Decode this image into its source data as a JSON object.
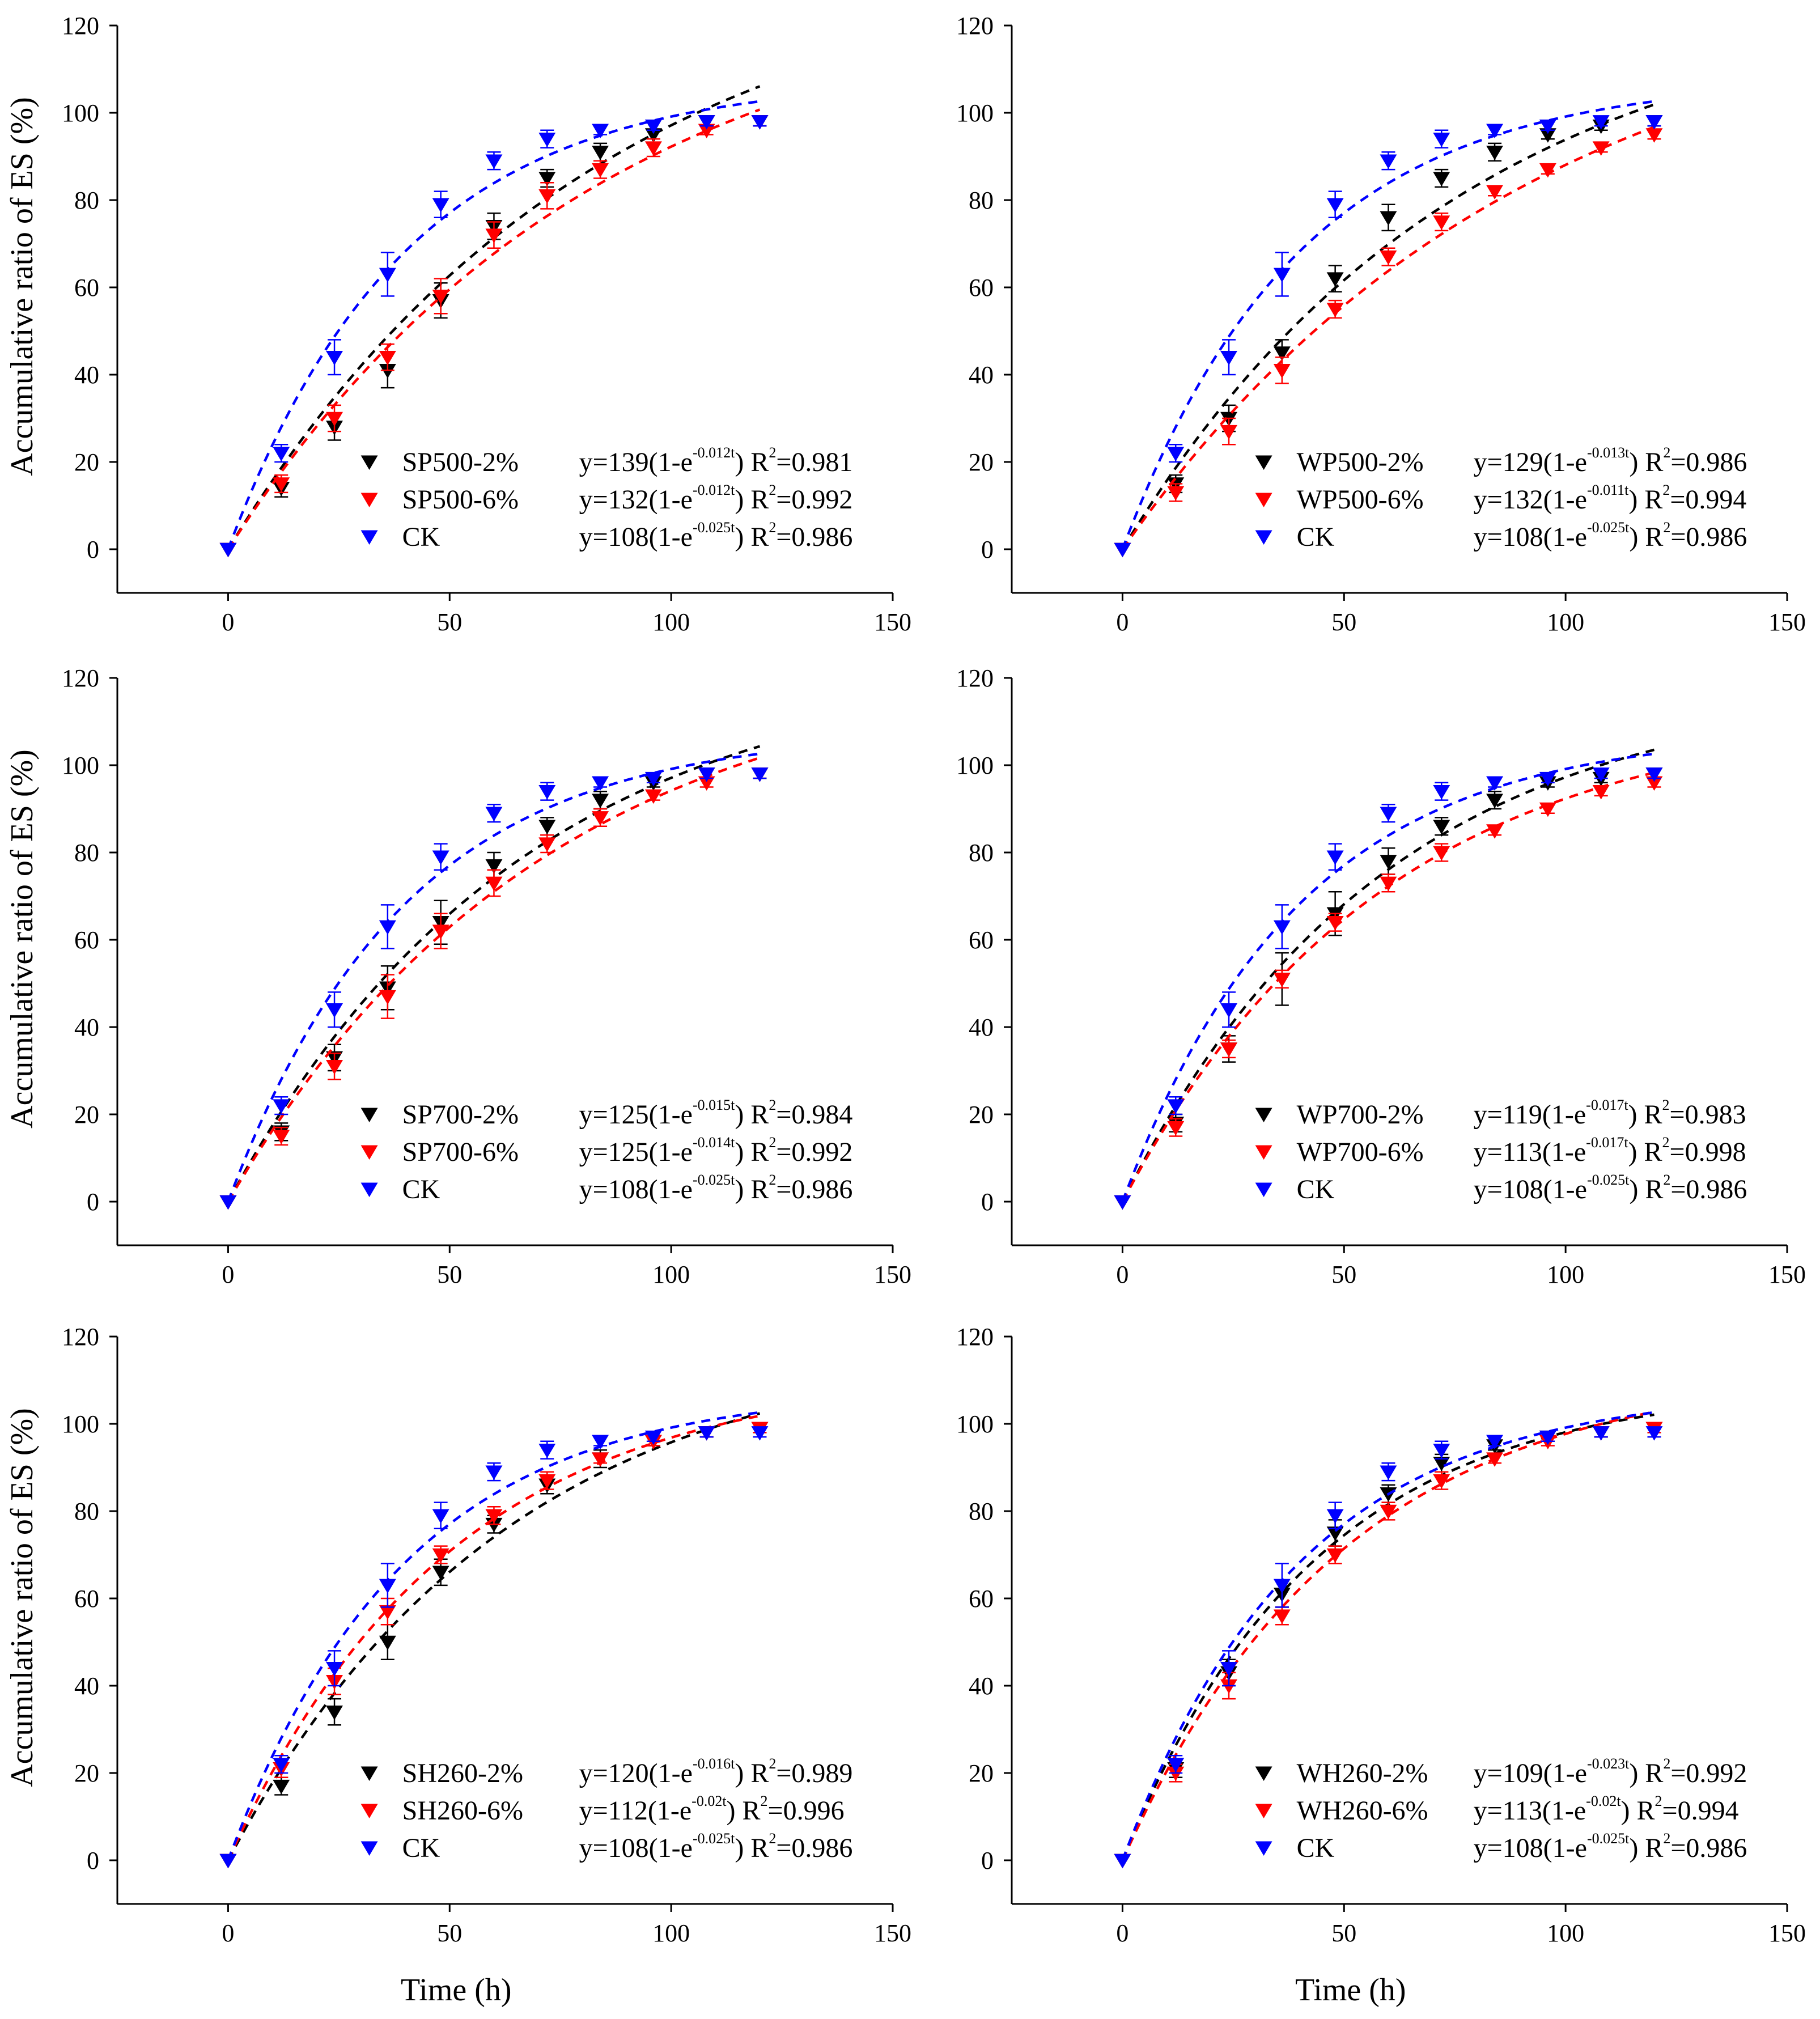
{
  "figure": {
    "shared_ylabel": "Accumulative ratio of ES (%)",
    "shared_xlabel": "Time (h)"
  },
  "colors": {
    "black": "#000000",
    "red": "#ff0000",
    "blue": "#0000ff"
  },
  "chart_data": [
    {
      "type": "scatter",
      "panel": "top-left",
      "xlabel": "",
      "ylabel": "Accumulative ratio of ES (%)",
      "xlim": [
        -25,
        150
      ],
      "ylim": [
        -10,
        120
      ],
      "xticks": [
        0,
        50,
        100,
        150
      ],
      "yticks": [
        0,
        20,
        40,
        60,
        80,
        100,
        120
      ],
      "legend_position": "bottom-right",
      "series": [
        {
          "name": "SP500-2%",
          "color": "#000000",
          "x": [
            0,
            12,
            24,
            36,
            48,
            60,
            72,
            84,
            96,
            108,
            120
          ],
          "y": [
            0,
            14,
            28,
            41,
            57,
            74,
            85,
            91,
            95,
            98,
            98
          ],
          "err": [
            0,
            2,
            3,
            4,
            4,
            3,
            2,
            2,
            1,
            1,
            1
          ],
          "fit": {
            "a": 139,
            "k": 0.012
          },
          "eq": {
            "pre": "y=139(1-e",
            "exp": "-0.012t",
            "post": ") R",
            "r2_sup": "2",
            "r2": "=0.981"
          }
        },
        {
          "name": "SP500-6%",
          "color": "#ff0000",
          "x": [
            0,
            12,
            24,
            36,
            48,
            60,
            72,
            84,
            96,
            108,
            120
          ],
          "y": [
            0,
            15,
            30,
            44,
            58,
            72,
            81,
            87,
            92,
            96,
            98
          ],
          "err": [
            0,
            2,
            3,
            3,
            4,
            3,
            3,
            2,
            2,
            1,
            1
          ],
          "fit": {
            "a": 132,
            "k": 0.012
          },
          "eq": {
            "pre": "y=132(1-e",
            "exp": "-0.012t",
            "post": ") R",
            "r2_sup": "2",
            "r2": "=0.992"
          }
        },
        {
          "name": "CK",
          "color": "#0000ff",
          "x": [
            0,
            12,
            24,
            36,
            48,
            60,
            72,
            84,
            96,
            108,
            120
          ],
          "y": [
            0,
            22,
            44,
            63,
            79,
            89,
            94,
            96,
            97,
            98,
            98
          ],
          "err": [
            0,
            2,
            4,
            5,
            3,
            2,
            2,
            1,
            1,
            1,
            1
          ],
          "fit": {
            "a": 108,
            "k": 0.025
          },
          "eq": {
            "pre": "y=108(1-e",
            "exp": "-0.025t",
            "post": ") R",
            "r2_sup": "2",
            "r2": "=0.986"
          }
        }
      ]
    },
    {
      "type": "scatter",
      "panel": "top-right",
      "xlabel": "",
      "ylabel": "",
      "xlim": [
        -25,
        150
      ],
      "ylim": [
        -10,
        120
      ],
      "xticks": [
        0,
        50,
        100,
        150
      ],
      "yticks": [
        0,
        20,
        40,
        60,
        80,
        100,
        120
      ],
      "legend_position": "bottom-right",
      "series": [
        {
          "name": "WP500-2%",
          "color": "#000000",
          "x": [
            0,
            12,
            24,
            36,
            48,
            60,
            72,
            84,
            96,
            108,
            120
          ],
          "y": [
            0,
            15,
            30,
            45,
            62,
            76,
            85,
            91,
            95,
            97,
            98
          ],
          "err": [
            0,
            2,
            3,
            3,
            3,
            3,
            2,
            2,
            1,
            1,
            1
          ],
          "fit": {
            "a": 129,
            "k": 0.013
          },
          "eq": {
            "pre": "y=129(1-e",
            "exp": "-0.013t",
            "post": ") R",
            "r2_sup": "2",
            "r2": "=0.986"
          }
        },
        {
          "name": "WP500-6%",
          "color": "#ff0000",
          "x": [
            0,
            12,
            24,
            36,
            48,
            60,
            72,
            84,
            96,
            108,
            120
          ],
          "y": [
            0,
            13,
            27,
            41,
            55,
            67,
            75,
            82,
            87,
            92,
            95
          ],
          "err": [
            0,
            2,
            3,
            3,
            2,
            2,
            2,
            1,
            1,
            1,
            1
          ],
          "fit": {
            "a": 132,
            "k": 0.011
          },
          "eq": {
            "pre": "y=132(1-e",
            "exp": "-0.011t",
            "post": ") R",
            "r2_sup": "2",
            "r2": "=0.994"
          }
        },
        {
          "name": "CK",
          "color": "#0000ff",
          "x": [
            0,
            12,
            24,
            36,
            48,
            60,
            72,
            84,
            96,
            108,
            120
          ],
          "y": [
            0,
            22,
            44,
            63,
            79,
            89,
            94,
            96,
            97,
            98,
            98
          ],
          "err": [
            0,
            2,
            4,
            5,
            3,
            2,
            2,
            1,
            1,
            1,
            1
          ],
          "fit": {
            "a": 108,
            "k": 0.025
          },
          "eq": {
            "pre": "y=108(1-e",
            "exp": "-0.025t",
            "post": ") R",
            "r2_sup": "2",
            "r2": "=0.986"
          }
        }
      ]
    },
    {
      "type": "scatter",
      "panel": "middle-left",
      "xlabel": "",
      "ylabel": "Accumulative ratio of ES (%)",
      "xlim": [
        -25,
        150
      ],
      "ylim": [
        -10,
        120
      ],
      "xticks": [
        0,
        50,
        100,
        150
      ],
      "yticks": [
        0,
        20,
        40,
        60,
        80,
        100,
        120
      ],
      "legend_position": "bottom-right",
      "series": [
        {
          "name": "SP700-2%",
          "color": "#000000",
          "x": [
            0,
            12,
            24,
            36,
            48,
            60,
            72,
            84,
            96,
            108,
            120
          ],
          "y": [
            0,
            16,
            33,
            49,
            64,
            77,
            86,
            92,
            96,
            98,
            98
          ],
          "err": [
            0,
            2,
            3,
            5,
            5,
            3,
            2,
            2,
            1,
            1,
            1
          ],
          "fit": {
            "a": 125,
            "k": 0.015
          },
          "eq": {
            "pre": "y=125(1-e",
            "exp": "-0.015t",
            "post": ") R",
            "r2_sup": "2",
            "r2": "=0.984"
          }
        },
        {
          "name": "SP700-6%",
          "color": "#ff0000",
          "x": [
            0,
            12,
            24,
            36,
            48,
            60,
            72,
            84,
            96,
            108,
            120
          ],
          "y": [
            0,
            15,
            31,
            47,
            62,
            73,
            82,
            88,
            93,
            96,
            98
          ],
          "err": [
            0,
            2,
            3,
            5,
            4,
            3,
            2,
            2,
            1,
            1,
            1
          ],
          "fit": {
            "a": 125,
            "k": 0.014
          },
          "eq": {
            "pre": "y=125(1-e",
            "exp": "-0.014t",
            "post": ") R",
            "r2_sup": "2",
            "r2": "=0.992"
          }
        },
        {
          "name": "CK",
          "color": "#0000ff",
          "x": [
            0,
            12,
            24,
            36,
            48,
            60,
            72,
            84,
            96,
            108,
            120
          ],
          "y": [
            0,
            22,
            44,
            63,
            79,
            89,
            94,
            96,
            97,
            98,
            98
          ],
          "err": [
            0,
            2,
            4,
            5,
            3,
            2,
            2,
            1,
            1,
            1,
            1
          ],
          "fit": {
            "a": 108,
            "k": 0.025
          },
          "eq": {
            "pre": "y=108(1-e",
            "exp": "-0.025t",
            "post": ") R",
            "r2_sup": "2",
            "r2": "=0.986"
          }
        }
      ]
    },
    {
      "type": "scatter",
      "panel": "middle-right",
      "xlabel": "",
      "ylabel": "",
      "xlim": [
        -25,
        150
      ],
      "ylim": [
        -10,
        120
      ],
      "xticks": [
        0,
        50,
        100,
        150
      ],
      "yticks": [
        0,
        20,
        40,
        60,
        80,
        100,
        120
      ],
      "legend_position": "bottom-right",
      "series": [
        {
          "name": "WP700-2%",
          "color": "#000000",
          "x": [
            0,
            12,
            24,
            36,
            48,
            60,
            72,
            84,
            96,
            108,
            120
          ],
          "y": [
            0,
            18,
            35,
            51,
            66,
            78,
            86,
            92,
            96,
            97,
            98
          ],
          "err": [
            0,
            2,
            3,
            6,
            5,
            3,
            2,
            2,
            1,
            1,
            1
          ],
          "fit": {
            "a": 119,
            "k": 0.017
          },
          "eq": {
            "pre": "y=119(1-e",
            "exp": "-0.017t",
            "post": ") R",
            "r2_sup": "2",
            "r2": "=0.983"
          }
        },
        {
          "name": "WP700-6%",
          "color": "#ff0000",
          "x": [
            0,
            12,
            24,
            36,
            48,
            60,
            72,
            84,
            96,
            108,
            120
          ],
          "y": [
            0,
            17,
            35,
            51,
            64,
            73,
            80,
            85,
            90,
            94,
            96
          ],
          "err": [
            0,
            2,
            2,
            2,
            2,
            2,
            2,
            1,
            1,
            1,
            1
          ],
          "fit": {
            "a": 113,
            "k": 0.017
          },
          "eq": {
            "pre": "y=113(1-e",
            "exp": "-0.017t",
            "post": ") R",
            "r2_sup": "2",
            "r2": "=0.998"
          }
        },
        {
          "name": "CK",
          "color": "#0000ff",
          "x": [
            0,
            12,
            24,
            36,
            48,
            60,
            72,
            84,
            96,
            108,
            120
          ],
          "y": [
            0,
            22,
            44,
            63,
            79,
            89,
            94,
            96,
            97,
            98,
            98
          ],
          "err": [
            0,
            2,
            4,
            5,
            3,
            2,
            2,
            1,
            1,
            1,
            1
          ],
          "fit": {
            "a": 108,
            "k": 0.025
          },
          "eq": {
            "pre": "y=108(1-e",
            "exp": "-0.025t",
            "post": ") R",
            "r2_sup": "2",
            "r2": "=0.986"
          }
        }
      ]
    },
    {
      "type": "scatter",
      "panel": "bottom-left",
      "xlabel": "Time (h)",
      "ylabel": "Accumulative ratio of ES (%)",
      "xlim": [
        -25,
        150
      ],
      "ylim": [
        -10,
        120
      ],
      "xticks": [
        0,
        50,
        100,
        150
      ],
      "yticks": [
        0,
        20,
        40,
        60,
        80,
        100,
        120
      ],
      "legend_position": "bottom-right",
      "series": [
        {
          "name": "SH260-2%",
          "color": "#000000",
          "x": [
            0,
            12,
            24,
            36,
            48,
            60,
            72,
            84,
            96,
            108,
            120
          ],
          "y": [
            0,
            17,
            34,
            50,
            66,
            77,
            86,
            92,
            96,
            98,
            99
          ],
          "err": [
            0,
            2,
            3,
            4,
            3,
            2,
            2,
            2,
            1,
            1,
            1
          ],
          "fit": {
            "a": 120,
            "k": 0.016
          },
          "eq": {
            "pre": "y=120(1-e",
            "exp": "-0.016t",
            "post": ") R",
            "r2_sup": "2",
            "r2": "=0.989"
          }
        },
        {
          "name": "SH260-6%",
          "color": "#ff0000",
          "x": [
            0,
            12,
            24,
            36,
            48,
            60,
            72,
            84,
            96,
            108,
            120
          ],
          "y": [
            0,
            21,
            41,
            57,
            70,
            79,
            87,
            92,
            96,
            98,
            99
          ],
          "err": [
            0,
            2,
            3,
            3,
            2,
            2,
            2,
            1,
            1,
            1,
            1
          ],
          "fit": {
            "a": 112,
            "k": 0.02
          },
          "eq": {
            "pre": "y=112(1-e",
            "exp": "-0.02t",
            "post": ") R",
            "r2_sup": "2",
            "r2": "=0.996"
          }
        },
        {
          "name": "CK",
          "color": "#0000ff",
          "x": [
            0,
            12,
            24,
            36,
            48,
            60,
            72,
            84,
            96,
            108,
            120
          ],
          "y": [
            0,
            22,
            44,
            63,
            79,
            89,
            94,
            96,
            97,
            98,
            98
          ],
          "err": [
            0,
            2,
            4,
            5,
            3,
            2,
            2,
            1,
            1,
            1,
            1
          ],
          "fit": {
            "a": 108,
            "k": 0.025
          },
          "eq": {
            "pre": "y=108(1-e",
            "exp": "-0.025t",
            "post": ") R",
            "r2_sup": "2",
            "r2": "=0.986"
          }
        }
      ]
    },
    {
      "type": "scatter",
      "panel": "bottom-right",
      "xlabel": "Time (h)",
      "ylabel": "",
      "xlim": [
        -25,
        150
      ],
      "ylim": [
        -10,
        120
      ],
      "xticks": [
        0,
        50,
        100,
        150
      ],
      "yticks": [
        0,
        20,
        40,
        60,
        80,
        100,
        120
      ],
      "legend_position": "bottom-right",
      "series": [
        {
          "name": "WH260-2%",
          "color": "#000000",
          "x": [
            0,
            12,
            24,
            36,
            48,
            60,
            72,
            84,
            96,
            108,
            120
          ],
          "y": [
            0,
            21,
            43,
            61,
            75,
            84,
            91,
            95,
            97,
            98,
            99
          ],
          "err": [
            0,
            2,
            3,
            3,
            3,
            2,
            2,
            1,
            1,
            1,
            1
          ],
          "fit": {
            "a": 109,
            "k": 0.023
          },
          "eq": {
            "pre": "y=109(1-e",
            "exp": "-0.023t",
            "post": ") R",
            "r2_sup": "2",
            "r2": "=0.992"
          }
        },
        {
          "name": "WH260-6%",
          "color": "#ff0000",
          "x": [
            0,
            12,
            24,
            36,
            48,
            60,
            72,
            84,
            96,
            108,
            120
          ],
          "y": [
            0,
            20,
            40,
            56,
            70,
            80,
            87,
            92,
            96,
            98,
            99
          ],
          "err": [
            0,
            2,
            3,
            2,
            2,
            2,
            2,
            1,
            1,
            1,
            1
          ],
          "fit": {
            "a": 113,
            "k": 0.02
          },
          "eq": {
            "pre": "y=113(1-e",
            "exp": "-0.02t",
            "post": ") R",
            "r2_sup": "2",
            "r2": "=0.994"
          }
        },
        {
          "name": "CK",
          "color": "#0000ff",
          "x": [
            0,
            12,
            24,
            36,
            48,
            60,
            72,
            84,
            96,
            108,
            120
          ],
          "y": [
            0,
            22,
            44,
            63,
            79,
            89,
            94,
            96,
            97,
            98,
            98
          ],
          "err": [
            0,
            2,
            4,
            5,
            3,
            2,
            2,
            1,
            1,
            1,
            1
          ],
          "fit": {
            "a": 108,
            "k": 0.025
          },
          "eq": {
            "pre": "y=108(1-e",
            "exp": "-0.025t",
            "post": ") R",
            "r2_sup": "2",
            "r2": "=0.986"
          }
        }
      ]
    }
  ]
}
